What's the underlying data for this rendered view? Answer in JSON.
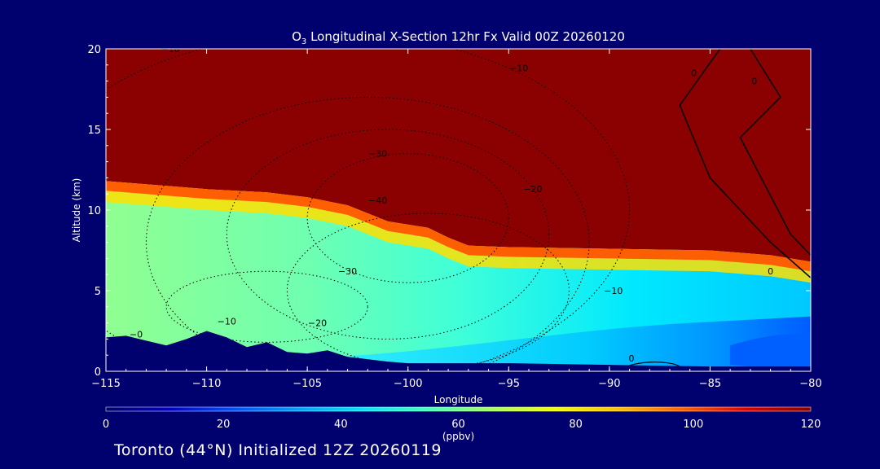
{
  "chart_data": {
    "type": "heatmap",
    "title_prefix": "O",
    "title_sub": "3",
    "title_rest": " Longitudinal X-Section 12hr  Fx Valid 00Z 20260120",
    "xlabel": "Longitude",
    "ylabel": "Altitude (km)",
    "xlim": [
      -115,
      -80
    ],
    "ylim": [
      0,
      20
    ],
    "x_ticks": [
      -115,
      -110,
      -105,
      -100,
      -95,
      -90,
      -85,
      -80
    ],
    "x_tick_labels": [
      "−115",
      "−110",
      "−105",
      "−100",
      "−95",
      "−90",
      "−85",
      "−80"
    ],
    "y_ticks": [
      0,
      5,
      10,
      15,
      20
    ],
    "y_tick_labels": [
      "0",
      "5",
      "10",
      "15",
      "20"
    ],
    "colorbar": {
      "range": [
        0,
        120
      ],
      "ticks": [
        0,
        20,
        40,
        60,
        80,
        100,
        120
      ],
      "tick_labels": [
        "0",
        "20",
        "40",
        "60",
        "80",
        "100",
        "120"
      ],
      "units": "(ppbv)",
      "colors": [
        "#00006e",
        "#0000c8",
        "#0050ff",
        "#00a0ff",
        "#00e6ff",
        "#40ffc0",
        "#a0ff60",
        "#f0ff00",
        "#ffc000",
        "#ff6000",
        "#e00000",
        "#8b0000"
      ]
    },
    "tropopause_km": [
      [
        -115,
        11.8
      ],
      [
        -112,
        11.5
      ],
      [
        -110,
        11.3
      ],
      [
        -107,
        11.1
      ],
      [
        -105,
        10.8
      ],
      [
        -103,
        10.3
      ],
      [
        -101,
        9.3
      ],
      [
        -99,
        8.9
      ],
      [
        -98,
        8.3
      ],
      [
        -97,
        7.8
      ],
      [
        -95,
        7.7
      ],
      [
        -90,
        7.6
      ],
      [
        -85,
        7.5
      ],
      [
        -82,
        7.2
      ],
      [
        -80,
        6.8
      ]
    ],
    "terrain_km": [
      [
        -115,
        2.1
      ],
      [
        -114,
        2.2
      ],
      [
        -113,
        1.9
      ],
      [
        -112,
        1.6
      ],
      [
        -111,
        2.0
      ],
      [
        -110,
        2.5
      ],
      [
        -109,
        2.1
      ],
      [
        -108,
        1.5
      ],
      [
        -107,
        1.8
      ],
      [
        -106,
        1.2
      ],
      [
        -105,
        1.1
      ],
      [
        -104,
        1.3
      ],
      [
        -103,
        0.9
      ],
      [
        -101,
        0.6
      ],
      [
        -100,
        0.5
      ],
      [
        -95,
        0.5
      ],
      [
        -90,
        0.4
      ],
      [
        -85,
        0.3
      ],
      [
        -80,
        0.3
      ]
    ],
    "contour_labels": [
      {
        "text": "−10",
        "lon": -111.8,
        "alt": 19.8
      },
      {
        "text": "−10",
        "lon": -94.5,
        "alt": 18.6
      },
      {
        "text": "−30",
        "lon": -101.5,
        "alt": 13.3
      },
      {
        "text": "−20",
        "lon": -93.8,
        "alt": 11.1
      },
      {
        "text": "−40",
        "lon": -101.5,
        "alt": 10.4
      },
      {
        "text": "−30",
        "lon": -103.0,
        "alt": 6.0
      },
      {
        "text": "−10",
        "lon": -109.0,
        "alt": 2.9
      },
      {
        "text": "−20",
        "lon": -104.5,
        "alt": 2.8
      },
      {
        "text": "−0",
        "lon": -113.5,
        "alt": 2.1
      },
      {
        "text": "−10",
        "lon": -89.8,
        "alt": 4.8
      },
      {
        "text": "0",
        "lon": -88.9,
        "alt": 0.6
      },
      {
        "text": "0",
        "lon": -85.8,
        "alt": 18.3
      },
      {
        "text": "0",
        "lon": -82.8,
        "alt": 17.8
      },
      {
        "text": "0",
        "lon": -82.0,
        "alt": 6.0
      }
    ]
  },
  "footer": "Toronto (44°N) Initialized 12Z 20260119"
}
